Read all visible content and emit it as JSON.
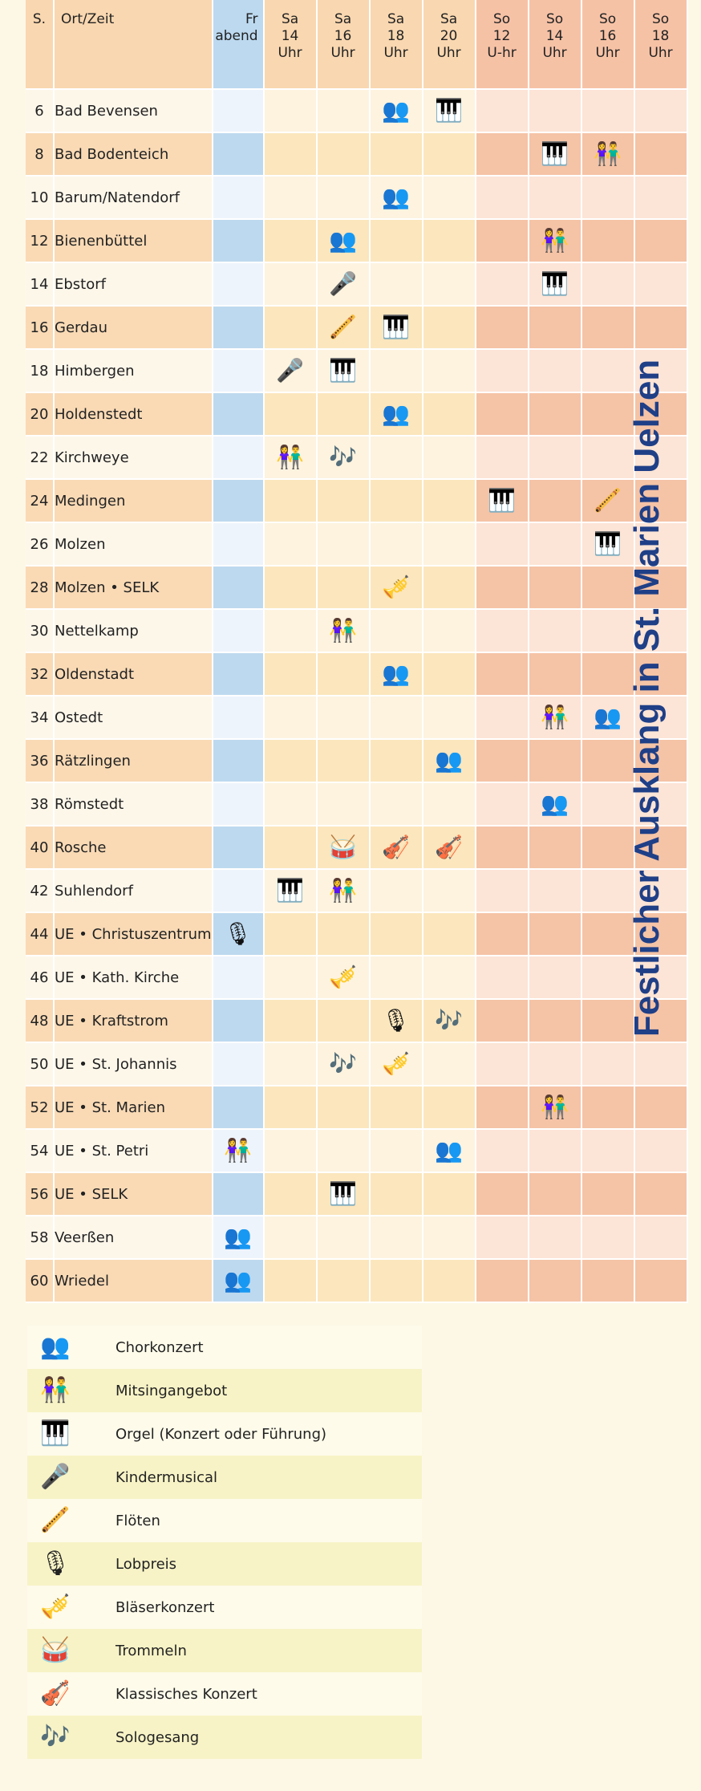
{
  "header": {
    "s": "S.",
    "ort_zeit": "Ort/Zeit",
    "fr": [
      "Fr",
      "abend"
    ],
    "columns": [
      {
        "day": "Sa",
        "num": "14",
        "unit": "Uhr"
      },
      {
        "day": "Sa",
        "num": "16",
        "unit": "Uhr"
      },
      {
        "day": "Sa",
        "num": "18",
        "unit": "Uhr"
      },
      {
        "day": "Sa",
        "num": "20",
        "unit": "Uhr"
      },
      {
        "day": "So",
        "num": "12",
        "unit": "U-hr"
      },
      {
        "day": "So",
        "num": "14",
        "unit": "Uhr"
      },
      {
        "day": "So",
        "num": "16",
        "unit": "Uhr"
      },
      {
        "day": "So",
        "num": "18",
        "unit": "Uhr"
      }
    ]
  },
  "rows": [
    {
      "s": "6",
      "ort": "Bad Bevensen",
      "slots": [
        [],
        [],
        [],
        [
          "chor"
        ],
        [
          "orgel"
        ],
        [],
        [],
        [],
        []
      ]
    },
    {
      "s": "8",
      "ort": "Bad Bodenteich",
      "slots": [
        [],
        [],
        [],
        [],
        [],
        [],
        [
          "orgel"
        ],
        [
          "mitsing"
        ],
        []
      ]
    },
    {
      "s": "10",
      "ort": "Barum/Natendorf",
      "slots": [
        [],
        [],
        [],
        [
          "chor"
        ],
        [],
        [],
        [],
        [],
        []
      ]
    },
    {
      "s": "12",
      "ort": "Bienenbüttel",
      "slots": [
        [],
        [],
        [
          "chor"
        ],
        [],
        [],
        [],
        [
          "mitsing"
        ],
        [],
        []
      ]
    },
    {
      "s": "14",
      "ort": "Ebstorf",
      "slots": [
        [],
        [],
        [
          "kinder"
        ],
        [],
        [],
        [],
        [
          "orgel"
        ],
        [],
        []
      ]
    },
    {
      "s": "16",
      "ort": "Gerdau",
      "slots": [
        [],
        [],
        [
          "floete"
        ],
        [
          "orgel"
        ],
        [],
        [],
        [],
        [],
        []
      ]
    },
    {
      "s": "18",
      "ort": "Himbergen",
      "slots": [
        [],
        [
          "kinder"
        ],
        [
          "orgel"
        ],
        [],
        [],
        [],
        [],
        [],
        []
      ]
    },
    {
      "s": "20",
      "ort": "Holdenstedt",
      "slots": [
        [],
        [],
        [],
        [
          "chor"
        ],
        [],
        [],
        [],
        [],
        []
      ]
    },
    {
      "s": "22",
      "ort": "Kirchweye",
      "slots": [
        [],
        [
          "mitsing"
        ],
        [
          "solo"
        ],
        [],
        [],
        [],
        [],
        [],
        []
      ]
    },
    {
      "s": "24",
      "ort": "Medingen",
      "slots": [
        [],
        [],
        [],
        [],
        [],
        [
          "orgel"
        ],
        [],
        [
          "floete"
        ],
        []
      ]
    },
    {
      "s": "26",
      "ort": "Molzen",
      "slots": [
        [],
        [],
        [],
        [],
        [],
        [],
        [],
        [
          "orgel"
        ],
        []
      ]
    },
    {
      "s": "28",
      "ort": "Molzen • SELK",
      "slots": [
        [],
        [],
        [],
        [
          "blaeser"
        ],
        [],
        [],
        [],
        [],
        []
      ]
    },
    {
      "s": "30",
      "ort": "Nettelkamp",
      "slots": [
        [],
        [],
        [
          "mitsing"
        ],
        [],
        [],
        [],
        [],
        [],
        []
      ]
    },
    {
      "s": "32",
      "ort": "Oldenstadt",
      "slots": [
        [],
        [],
        [],
        [
          "chor"
        ],
        [],
        [],
        [],
        [],
        []
      ]
    },
    {
      "s": "34",
      "ort": "Ostedt",
      "slots": [
        [],
        [],
        [],
        [],
        [],
        [],
        [
          "mitsing"
        ],
        [
          "chor"
        ],
        []
      ]
    },
    {
      "s": "36",
      "ort": "Rätzlingen",
      "slots": [
        [],
        [],
        [],
        [],
        [
          "chor"
        ],
        [],
        [],
        [],
        []
      ]
    },
    {
      "s": "38",
      "ort": "Römstedt",
      "slots": [
        [],
        [],
        [],
        [],
        [],
        [],
        [
          "chor"
        ],
        [],
        []
      ]
    },
    {
      "s": "40",
      "ort": "Rosche",
      "slots": [
        [],
        [],
        [
          "trommel"
        ],
        [
          "klassik"
        ],
        [
          "klassik"
        ],
        [],
        [],
        [],
        []
      ]
    },
    {
      "s": "42",
      "ort": "Suhlendorf",
      "slots": [
        [],
        [
          "orgel"
        ],
        [
          "mitsing"
        ],
        [],
        [],
        [],
        [],
        [],
        []
      ]
    },
    {
      "s": "44",
      "ort": "UE • Christuszentrum",
      "slots": [
        [
          "lobpreis"
        ],
        [],
        [],
        [],
        [],
        [],
        [],
        [],
        []
      ]
    },
    {
      "s": "46",
      "ort": "UE • Kath. Kirche",
      "slots": [
        [],
        [],
        [
          "blaeser"
        ],
        [],
        [],
        [],
        [],
        [],
        []
      ]
    },
    {
      "s": "48",
      "ort": "UE • Kraftstrom",
      "slots": [
        [],
        [],
        [],
        [
          "lobpreis"
        ],
        [
          "solo"
        ],
        [],
        [],
        [],
        []
      ]
    },
    {
      "s": "50",
      "ort": "UE • St. Johannis",
      "slots": [
        [],
        [],
        [
          "solo"
        ],
        [
          "blaeser"
        ],
        [],
        [],
        [],
        [],
        []
      ]
    },
    {
      "s": "52",
      "ort": "UE • St. Marien",
      "slots": [
        [],
        [],
        [],
        [],
        [],
        [],
        [
          "mitsing"
        ],
        [],
        []
      ]
    },
    {
      "s": "54",
      "ort": "UE • St. Petri",
      "slots": [
        [
          "mitsing"
        ],
        [],
        [],
        [],
        [
          "chor"
        ],
        [],
        [],
        [],
        []
      ]
    },
    {
      "s": "56",
      "ort": "UE • SELK",
      "slots": [
        [],
        [],
        [
          "orgel"
        ],
        [],
        [],
        [],
        [],
        [],
        []
      ]
    },
    {
      "s": "58",
      "ort": "Veerßen",
      "slots": [
        [
          "chor"
        ],
        [],
        [],
        [],
        [],
        [],
        [],
        [],
        []
      ]
    },
    {
      "s": "60",
      "ort": "Wriedel",
      "slots": [
        [
          "chor"
        ],
        [],
        [],
        [],
        [],
        [],
        [],
        [],
        []
      ]
    }
  ],
  "side_title": "Festlicher Ausklang in St. Marien Uelzen",
  "legend": [
    {
      "key": "chor",
      "icon": "chorkonzert-icon",
      "label": "Chorkonzert"
    },
    {
      "key": "mitsing",
      "icon": "mitsingangebot-icon",
      "label": "Mitsingangebot"
    },
    {
      "key": "orgel",
      "icon": "orgel-icon",
      "label": "Orgel (Konzert oder Führung)"
    },
    {
      "key": "kinder",
      "icon": "kindermusical-icon",
      "label": "Kindermusical"
    },
    {
      "key": "floete",
      "icon": "floeten-icon",
      "label": "Flöten"
    },
    {
      "key": "lobpreis",
      "icon": "lobpreis-icon",
      "label": "Lobpreis"
    },
    {
      "key": "blaeser",
      "icon": "blaeserkonzert-icon",
      "label": "Bläserkonzert"
    },
    {
      "key": "trommel",
      "icon": "trommeln-icon",
      "label": "Trommeln"
    },
    {
      "key": "klassik",
      "icon": "klassisches-konzert-icon",
      "label": "Klassisches Konzert"
    },
    {
      "key": "solo",
      "icon": "sologesang-icon",
      "label": "Sologesang"
    }
  ]
}
